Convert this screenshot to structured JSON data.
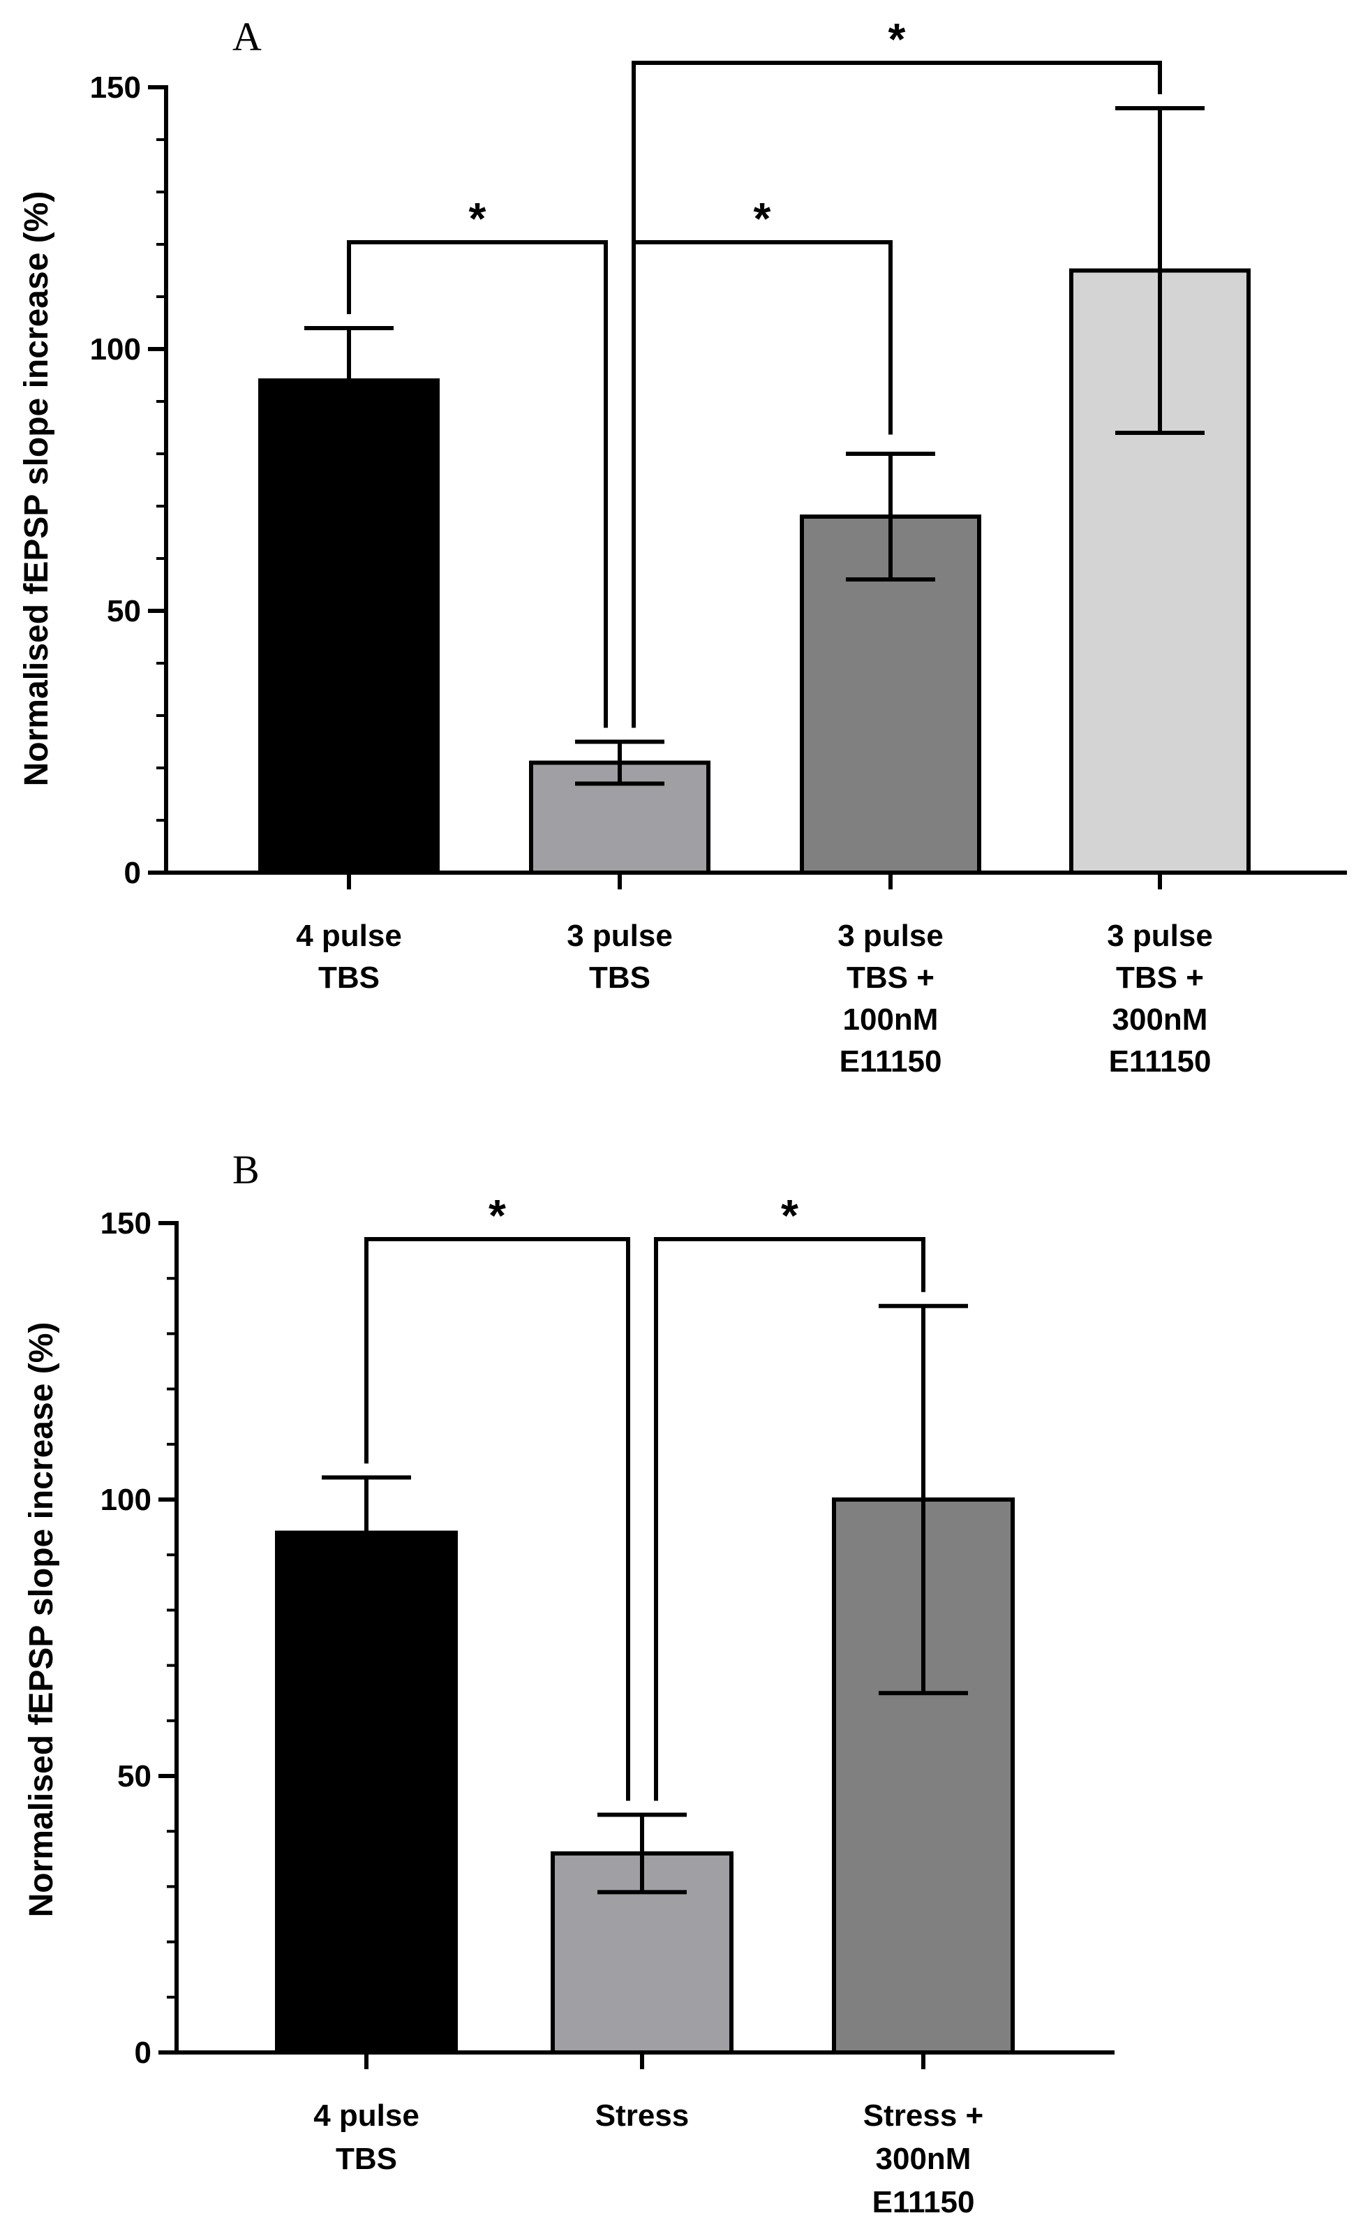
{
  "chart_data": [
    {
      "panel": "A",
      "type": "bar",
      "ylabel": "Normalised fEPSP slope increase (%)",
      "ylim": [
        0,
        150
      ],
      "yticks": [
        0,
        50,
        100,
        150
      ],
      "yminor_step": 10,
      "bars": [
        {
          "label_lines": [
            "4 pulse",
            "TBS"
          ],
          "value": 94,
          "err_low": 84,
          "err_high": 104,
          "color": "#000000"
        },
        {
          "label_lines": [
            "3 pulse",
            "TBS"
          ],
          "value": 21,
          "err_low": 17,
          "err_high": 25,
          "color": "#a0a0a4"
        },
        {
          "label_lines": [
            "3 pulse",
            "TBS +",
            "100nM",
            "E11150"
          ],
          "value": 68,
          "err_low": 56,
          "err_high": 80,
          "color": "#808080"
        },
        {
          "label_lines": [
            "3 pulse",
            "TBS +",
            "300nM",
            "E11150"
          ],
          "value": 115,
          "err_low": 84,
          "err_high": 146,
          "color": "#d4d4d4"
        }
      ],
      "significance": [
        {
          "from": 0,
          "to": 1,
          "label": "*"
        },
        {
          "from": 1,
          "to": 2,
          "label": "*"
        },
        {
          "from": 1,
          "to": 3,
          "label": "*"
        }
      ]
    },
    {
      "panel": "B",
      "type": "bar",
      "ylabel": "Normalised fEPSP slope increase (%)",
      "ylim": [
        0,
        150
      ],
      "yticks": [
        0,
        50,
        100,
        150
      ],
      "yminor_step": 10,
      "bars": [
        {
          "label_lines": [
            "4 pulse",
            "TBS"
          ],
          "value": 94,
          "err_low": 84,
          "err_high": 104,
          "color": "#000000"
        },
        {
          "label_lines": [
            "Stress"
          ],
          "value": 36,
          "err_low": 29,
          "err_high": 43,
          "color": "#a0a0a4"
        },
        {
          "label_lines": [
            "Stress +",
            "300nM",
            "E11150"
          ],
          "value": 100,
          "err_low": 65,
          "err_high": 135,
          "color": "#808080"
        }
      ],
      "significance": [
        {
          "from": 0,
          "to": 1,
          "label": "*"
        },
        {
          "from": 1,
          "to": 2,
          "label": "*"
        }
      ]
    }
  ]
}
